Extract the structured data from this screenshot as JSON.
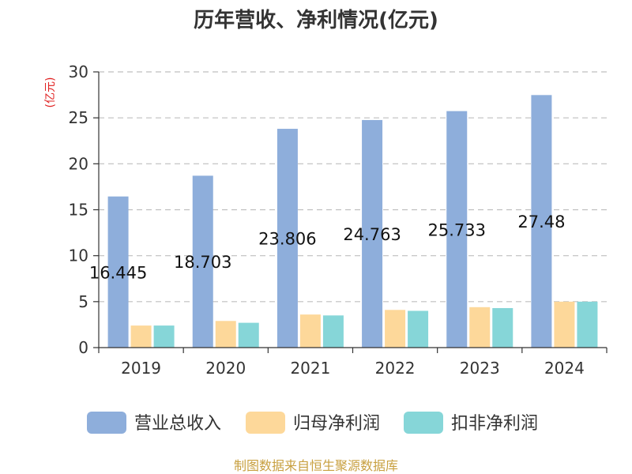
{
  "title": "历年营收、净利情况(亿元)",
  "source": "制图数据来自恒生聚源数据库",
  "chart_data": {
    "type": "bar",
    "title": "历年营收、净利情况(亿元)",
    "xlabel": "",
    "ylabel": "(亿元)",
    "categories": [
      "2019",
      "2020",
      "2021",
      "2022",
      "2023",
      "2024"
    ],
    "ylim": [
      0,
      30
    ],
    "yticks": [
      0,
      5,
      10,
      15,
      20,
      25,
      30
    ],
    "grid": true,
    "legend_position": "bottom",
    "series": [
      {
        "name": "营业总收入",
        "color": "#8eaedb",
        "values": [
          16.445,
          18.703,
          23.806,
          24.763,
          25.733,
          27.48
        ],
        "labels": [
          "16.445",
          "18.703",
          "23.806",
          "24.763",
          "25.733",
          "27.48"
        ]
      },
      {
        "name": "归母净利润",
        "color": "#fdd89a",
        "values": [
          2.4,
          2.9,
          3.6,
          4.1,
          4.4,
          5.0
        ]
      },
      {
        "name": "扣非净利润",
        "color": "#86d6d8",
        "values": [
          2.4,
          2.7,
          3.5,
          4.0,
          4.3,
          5.0
        ]
      }
    ]
  }
}
